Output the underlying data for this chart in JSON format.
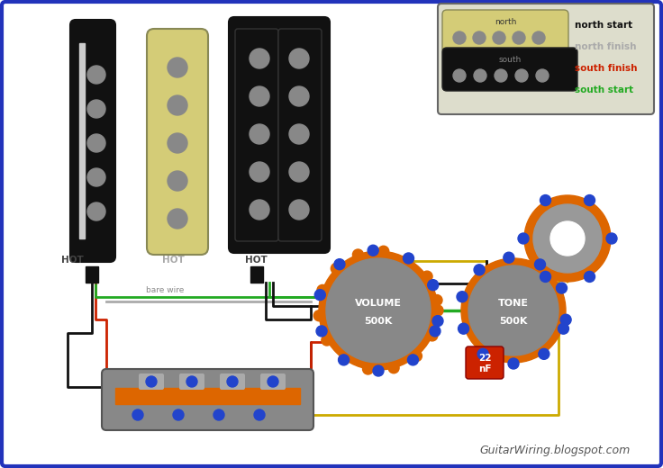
{
  "bg_color": "#ffffff",
  "border_color": "#2233bb",
  "title_text": "GuitarWiring.blogspot.com",
  "legend_labels": [
    "north start",
    "north finish",
    "south finish",
    "south start"
  ],
  "legend_colors": [
    "#111111",
    "#aaaaaa",
    "#cc2200",
    "#22aa22"
  ],
  "wire_lw": 2.0
}
